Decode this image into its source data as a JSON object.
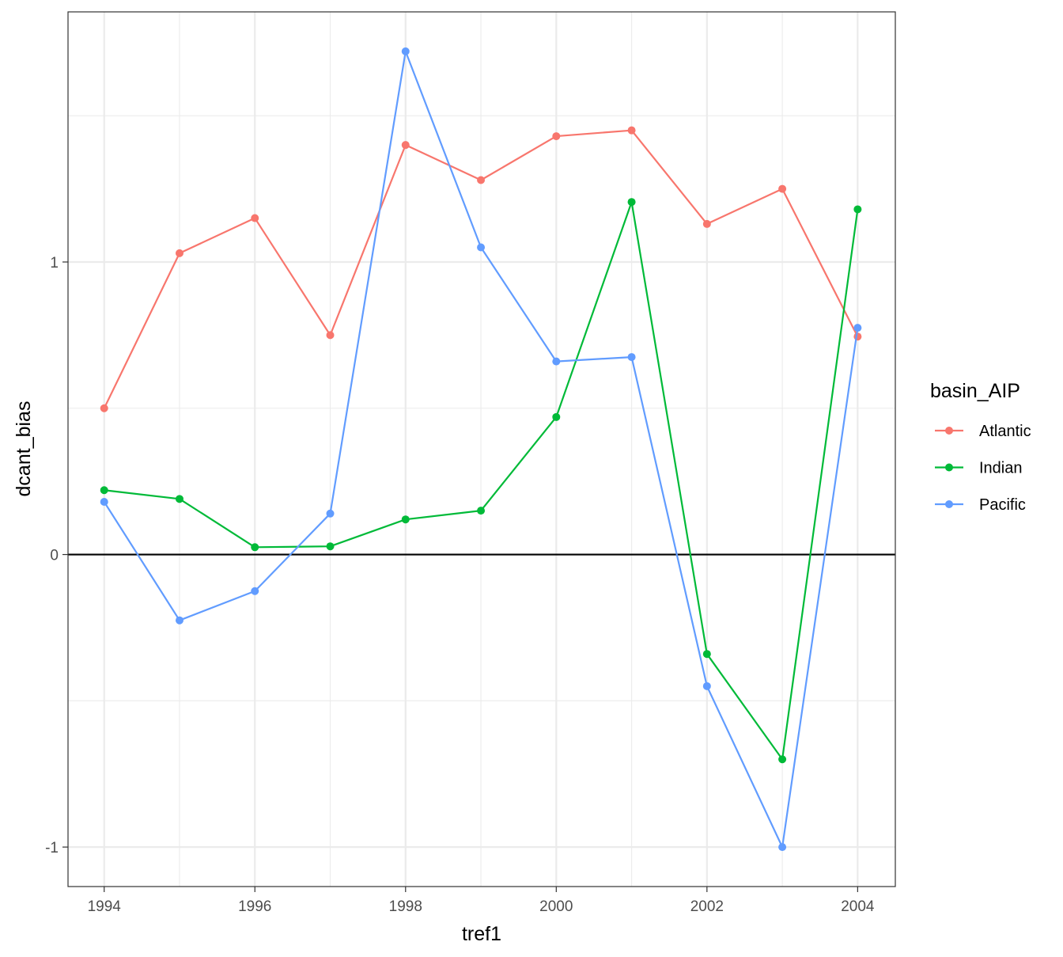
{
  "chart_data": {
    "type": "line",
    "xlabel": "tref1",
    "ylabel": "dcant_bias",
    "x": [
      1994,
      1995,
      1996,
      1997,
      1998,
      1999,
      2000,
      2001,
      2002,
      2003,
      2004
    ],
    "x_ticks": [
      1994,
      1996,
      1998,
      2000,
      2002,
      2004
    ],
    "y_ticks": [
      -1,
      0,
      1
    ],
    "xlim": [
      1993.52,
      2004.5
    ],
    "ylim": [
      -1.135,
      1.855
    ],
    "hline": 0,
    "grid": true,
    "legend": {
      "title": "basin_AIP",
      "position": "right"
    },
    "series": [
      {
        "name": "Atlantic",
        "color": "#F8766D",
        "values": [
          0.5,
          1.03,
          1.15,
          0.75,
          1.4,
          1.28,
          1.43,
          1.45,
          1.13,
          1.25,
          0.745
        ]
      },
      {
        "name": "Indian",
        "color": "#00BA38",
        "values": [
          0.22,
          0.19,
          0.025,
          0.028,
          0.12,
          0.15,
          0.47,
          1.205,
          -0.34,
          -0.7,
          1.18
        ]
      },
      {
        "name": "Pacific",
        "color": "#619CFF",
        "values": [
          0.18,
          -0.225,
          -0.125,
          0.14,
          1.72,
          1.05,
          0.66,
          0.675,
          -0.45,
          -1.0,
          0.775
        ]
      }
    ]
  }
}
